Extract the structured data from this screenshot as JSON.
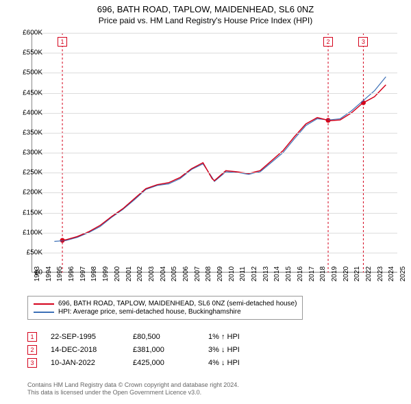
{
  "title": "696, BATH ROAD, TAPLOW, MAIDENHEAD, SL6 0NZ",
  "subtitle": "Price paid vs. HM Land Registry's House Price Index (HPI)",
  "chart": {
    "type": "line",
    "background_color": "#ffffff",
    "grid_color": "#dcdcdc",
    "xlim": [
      1993,
      2025
    ],
    "ylim": [
      0,
      600000
    ],
    "yticks": [
      0,
      50000,
      100000,
      150000,
      200000,
      250000,
      300000,
      350000,
      400000,
      450000,
      500000,
      550000,
      600000
    ],
    "ytick_labels": [
      "£0",
      "£50K",
      "£100K",
      "£150K",
      "£200K",
      "£250K",
      "£300K",
      "£350K",
      "£400K",
      "£450K",
      "£500K",
      "£550K",
      "£600K"
    ],
    "xticks": [
      1993,
      1994,
      1995,
      1996,
      1997,
      1998,
      1999,
      2000,
      2001,
      2002,
      2003,
      2004,
      2005,
      2006,
      2007,
      2008,
      2009,
      2010,
      2011,
      2012,
      2013,
      2014,
      2015,
      2016,
      2017,
      2018,
      2019,
      2020,
      2021,
      2022,
      2023,
      2024,
      2025
    ],
    "label_fontsize": 10,
    "series": [
      {
        "name": "property",
        "label": "696, BATH ROAD, TAPLOW, MAIDENHEAD, SL6 0NZ (semi-detached house)",
        "color": "#d4001a",
        "width": 1.5,
        "x": [
          1995.7,
          1996,
          1997,
          1998,
          1999,
          2000,
          2001,
          2002,
          2003,
          2004,
          2005,
          2006,
          2007,
          2008,
          2008.8,
          2009,
          2010,
          2011,
          2012,
          2013,
          2014,
          2015,
          2016,
          2017,
          2018,
          2018.95,
          2019,
          2020,
          2021,
          2022,
          2022.03,
          2023,
          2024
        ],
        "y": [
          80500,
          82000,
          90000,
          102000,
          118000,
          140000,
          160000,
          185000,
          210000,
          220000,
          225000,
          238000,
          260000,
          275000,
          235000,
          230000,
          255000,
          252000,
          248000,
          255000,
          280000,
          305000,
          340000,
          372000,
          388000,
          381000,
          380000,
          382000,
          400000,
          425000,
          425000,
          440000,
          470000
        ]
      },
      {
        "name": "hpi",
        "label": "HPI: Average price, semi-detached house, Buckinghamshire",
        "color": "#3b6fb6",
        "width": 1.2,
        "x": [
          1995,
          1996,
          1997,
          1998,
          1999,
          2000,
          2001,
          2002,
          2003,
          2004,
          2005,
          2006,
          2007,
          2008,
          2008.8,
          2009,
          2010,
          2011,
          2012,
          2013,
          2014,
          2015,
          2016,
          2017,
          2018,
          2019,
          2020,
          2021,
          2022,
          2023,
          2024
        ],
        "y": [
          78000,
          80000,
          88000,
          100000,
          115000,
          138000,
          158000,
          182000,
          208000,
          218000,
          222000,
          235000,
          258000,
          272000,
          238000,
          228000,
          252000,
          250000,
          246000,
          252000,
          276000,
          300000,
          335000,
          368000,
          385000,
          382000,
          385000,
          405000,
          430000,
          455000,
          490000
        ]
      }
    ],
    "markers": [
      {
        "n": "1",
        "year": 1995.7,
        "value": 80500,
        "color": "#d4001a"
      },
      {
        "n": "2",
        "year": 2018.95,
        "value": 381000,
        "color": "#d4001a"
      },
      {
        "n": "3",
        "year": 2022.03,
        "value": 425000,
        "color": "#d4001a"
      }
    ]
  },
  "legend": [
    {
      "color": "#d4001a",
      "text": "696, BATH ROAD, TAPLOW, MAIDENHEAD, SL6 0NZ (semi-detached house)"
    },
    {
      "color": "#3b6fb6",
      "text": "HPI: Average price, semi-detached house, Buckinghamshire"
    }
  ],
  "info": [
    {
      "n": "1",
      "color": "#d4001a",
      "date": "22-SEP-1995",
      "price": "£80,500",
      "hpi": "1% ↑ HPI"
    },
    {
      "n": "2",
      "color": "#d4001a",
      "date": "14-DEC-2018",
      "price": "£381,000",
      "hpi": "3% ↓ HPI"
    },
    {
      "n": "3",
      "color": "#d4001a",
      "date": "10-JAN-2022",
      "price": "£425,000",
      "hpi": "4% ↓ HPI"
    }
  ],
  "footer_line1": "Contains HM Land Registry data © Crown copyright and database right 2024.",
  "footer_line2": "This data is licensed under the Open Government Licence v3.0."
}
